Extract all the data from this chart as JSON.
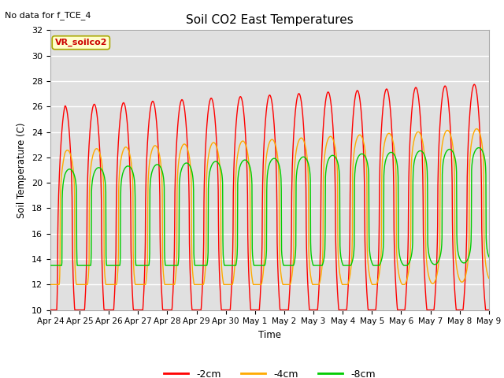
{
  "title": "Soil CO2 East Temperatures",
  "top_left_note": "No data for f_TCE_4",
  "ylabel": "Soil Temperature (C)",
  "xlabel": "Time",
  "legend_label": "VR_soilco2",
  "ylim": [
    10,
    32
  ],
  "series_labels": [
    "-2cm",
    "-4cm",
    "-8cm"
  ],
  "series_colors": [
    "#ff0000",
    "#ffaa00",
    "#00cc00"
  ],
  "background_color": "#e0e0e0",
  "x_tick_labels": [
    "Apr 24",
    "Apr 25",
    "Apr 26",
    "Apr 27",
    "Apr 28",
    "Apr 29",
    "Apr 30",
    "May 1",
    "May 2",
    "May 3",
    "May 4",
    "May 5",
    "May 6",
    "May 7",
    "May 8",
    "May 9"
  ],
  "grid_color": "#ffffff",
  "spine_color": "#aaaaaa"
}
